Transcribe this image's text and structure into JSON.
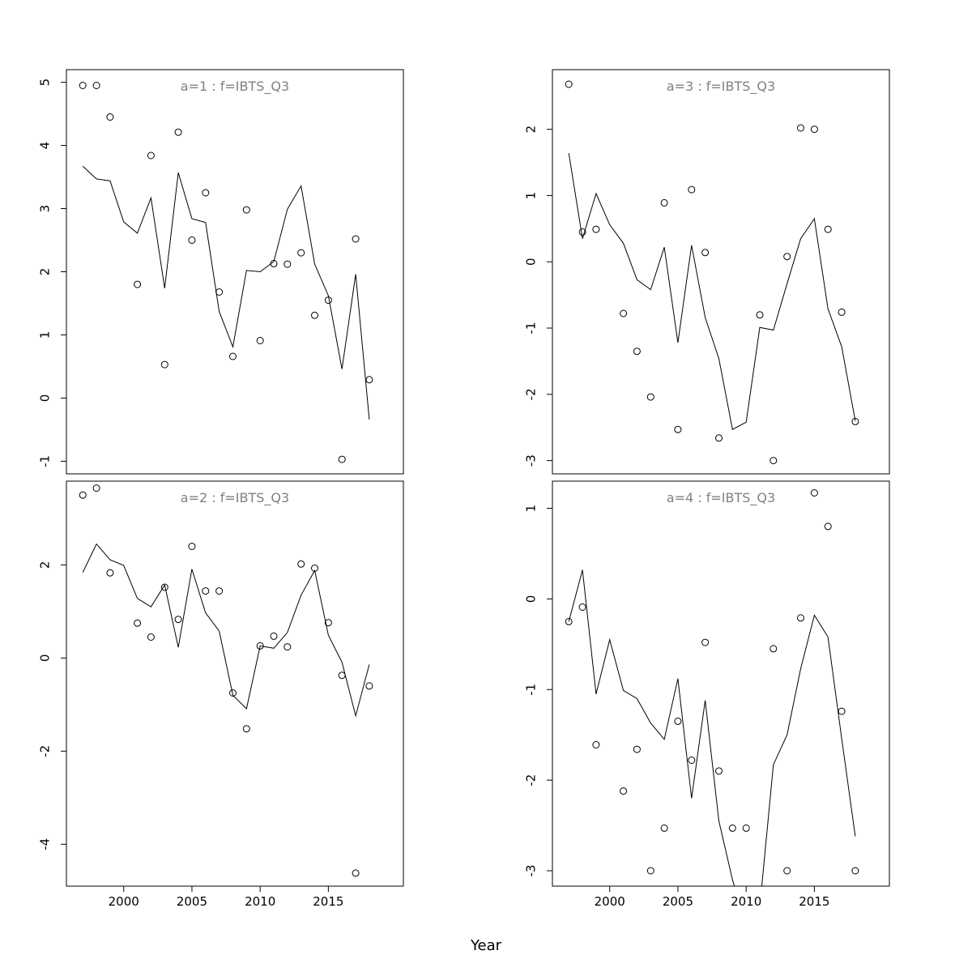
{
  "chart_data": {
    "type": "scatter",
    "xlabel": "Year",
    "panels": [
      {
        "title": "a=1  :  f=IBTS_Q3",
        "ylim": [
          -1.2,
          5.2
        ],
        "yticks": [
          -1,
          0,
          1,
          2,
          3,
          4,
          5
        ],
        "series": [
          {
            "kind": "points",
            "x": [
              1997,
              1998,
              1999,
              2001,
              2002,
              2003,
              2004,
              2005,
              2006,
              2007,
              2008,
              2009,
              2010,
              2011,
              2012,
              2013,
              2014,
              2015,
              2016,
              2017,
              2018
            ],
            "y": [
              4.95,
              4.95,
              4.45,
              1.8,
              3.84,
              0.53,
              4.21,
              2.5,
              3.25,
              1.68,
              0.66,
              2.98,
              0.91,
              2.13,
              2.12,
              2.3,
              1.31,
              1.55,
              -0.97,
              2.52,
              0.29
            ]
          },
          {
            "kind": "line",
            "x": [
              1997,
              1998,
              1999,
              2000,
              2001,
              2002,
              2003,
              2004,
              2005,
              2006,
              2007,
              2008,
              2009,
              2010,
              2011,
              2012,
              2013,
              2014,
              2015,
              2016,
              2017,
              2018
            ],
            "y": [
              3.67,
              3.47,
              3.44,
              2.79,
              2.61,
              3.17,
              1.74,
              3.57,
              2.84,
              2.78,
              1.37,
              0.81,
              2.02,
              2.0,
              2.16,
              2.99,
              3.36,
              2.12,
              1.62,
              0.46,
              1.96,
              -0.34
            ]
          }
        ]
      },
      {
        "title": "a=3  :  f=IBTS_Q3",
        "ylim": [
          -3.2,
          2.9
        ],
        "yticks": [
          -3,
          -2,
          -1,
          0,
          1,
          2
        ],
        "series": [
          {
            "kind": "points",
            "x": [
              1997,
              1998,
              1999,
              2001,
              2002,
              2003,
              2004,
              2005,
              2006,
              2007,
              2008,
              2011,
              2012,
              2013,
              2014,
              2015,
              2016,
              2017,
              2018
            ],
            "y": [
              2.68,
              0.45,
              0.49,
              -0.78,
              -1.35,
              -2.04,
              0.89,
              -2.53,
              1.09,
              0.14,
              -2.66,
              -0.8,
              -3.0,
              0.08,
              2.02,
              2.0,
              0.49,
              -0.76,
              -2.41
            ]
          },
          {
            "kind": "line",
            "x": [
              1997,
              1998,
              1999,
              2000,
              2001,
              2002,
              2003,
              2004,
              2005,
              2006,
              2007,
              2008,
              2009,
              2010,
              2011,
              2012,
              2013,
              2014,
              2015,
              2016,
              2017,
              2018
            ],
            "y": [
              1.64,
              0.35,
              1.03,
              0.56,
              0.28,
              -0.27,
              -0.42,
              0.22,
              -1.22,
              0.25,
              -0.84,
              -1.46,
              -2.53,
              -2.42,
              -0.99,
              -1.03,
              -0.33,
              0.35,
              0.65,
              -0.71,
              -1.28,
              -2.4
            ]
          }
        ]
      },
      {
        "title": "a=2  :  f=IBTS_Q3",
        "ylim": [
          -4.9,
          3.8
        ],
        "yticks": [
          -4,
          -2,
          0,
          2
        ],
        "series": [
          {
            "kind": "points",
            "x": [
              1997,
              1998,
              1999,
              2001,
              2002,
              2003,
              2004,
              2005,
              2006,
              2007,
              2008,
              2009,
              2010,
              2011,
              2012,
              2013,
              2014,
              2015,
              2016,
              2017,
              2018
            ],
            "y": [
              3.5,
              3.65,
              1.83,
              0.75,
              0.45,
              1.52,
              0.83,
              2.4,
              1.44,
              1.44,
              -0.75,
              -1.52,
              0.26,
              0.47,
              0.24,
              2.02,
              1.93,
              0.76,
              -0.37,
              -4.62,
              -0.6
            ]
          },
          {
            "kind": "line",
            "x": [
              1997,
              1998,
              1999,
              2000,
              2001,
              2002,
              2003,
              2004,
              2005,
              2006,
              2007,
              2008,
              2009,
              2010,
              2011,
              2012,
              2013,
              2014,
              2015,
              2016,
              2017,
              2018
            ],
            "y": [
              1.84,
              2.45,
              2.11,
              1.99,
              1.28,
              1.1,
              1.57,
              0.23,
              1.91,
              0.97,
              0.58,
              -0.8,
              -1.09,
              0.26,
              0.21,
              0.55,
              1.35,
              1.88,
              0.49,
              -0.09,
              -1.24,
              -0.14
            ]
          }
        ]
      },
      {
        "title": "a=4  :  f=IBTS_Q3",
        "ylim": [
          -3.17,
          1.3
        ],
        "yticks": [
          -3,
          -2,
          -1,
          0,
          1
        ],
        "series": [
          {
            "kind": "points",
            "x": [
              1997,
              1998,
              1999,
              2001,
              2002,
              2003,
              2004,
              2005,
              2006,
              2007,
              2008,
              2009,
              2010,
              2012,
              2013,
              2014,
              2015,
              2016,
              2017,
              2018
            ],
            "y": [
              -0.25,
              -0.09,
              -1.61,
              -2.12,
              -1.66,
              -3.0,
              -2.53,
              -1.35,
              -1.78,
              -0.48,
              -1.9,
              -2.53,
              -2.53,
              -0.55,
              -3.0,
              -0.21,
              1.17,
              0.8,
              -1.24,
              -3.0
            ]
          },
          {
            "kind": "line",
            "x": [
              1997,
              1998,
              1999,
              2000,
              2001,
              2002,
              2003,
              2004,
              2005,
              2006,
              2007,
              2008,
              2009,
              2010,
              2011,
              2012,
              2013,
              2014,
              2015,
              2016,
              2017,
              2018
            ],
            "y": [
              -0.25,
              0.32,
              -1.05,
              -0.45,
              -1.01,
              -1.1,
              -1.37,
              -1.55,
              -0.88,
              -2.2,
              -1.12,
              -2.45,
              -3.1,
              -3.6,
              -3.4,
              -1.83,
              -1.5,
              -0.77,
              -0.18,
              -0.42,
              -1.54,
              -2.62
            ]
          }
        ]
      }
    ],
    "xlim": [
      1995.8,
      2020.5
    ],
    "xticks": [
      2000,
      2005,
      2010,
      2015
    ],
    "grid": false,
    "legend": "none"
  }
}
